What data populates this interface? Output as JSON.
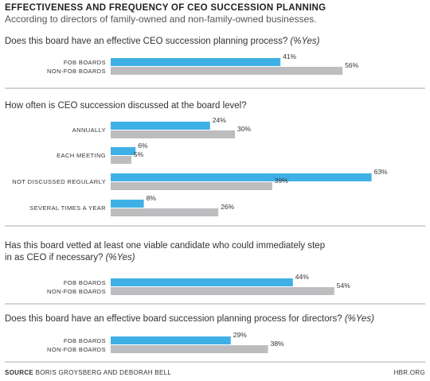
{
  "chart_data": {
    "type": "bar",
    "orientation": "horizontal",
    "title": "EFFECTIVENESS AND FREQUENCY OF CEO SUCCESSION PLANNING",
    "subtitle": "According to directors of family-owned and non-family-owned businesses.",
    "unit": "%",
    "xlim": [
      0,
      63
    ],
    "grid": false,
    "colors": {
      "fob": "#3fb0e5",
      "nonfob": "#bdbdbf"
    },
    "panels": [
      {
        "question": "Does this board have an effective CEO succession planning process?",
        "question_suffix": "(%Yes)",
        "rows": [
          {
            "label": "FOB BOARDS",
            "value": 41,
            "series": "fob"
          },
          {
            "label": "NON-FOB BOARDS",
            "value": 56,
            "series": "nonfob"
          }
        ]
      },
      {
        "question": "How often is CEO succession discussed at the board level?",
        "question_suffix": "",
        "groups": [
          {
            "label": "ANNUALLY",
            "fob": 24,
            "nonfob": 30
          },
          {
            "label": "EACH MEETING",
            "fob": 6,
            "nonfob": 5
          },
          {
            "label": "NOT DISCUSSED REGULARLY",
            "fob": 63,
            "nonfob": 39
          },
          {
            "label": "SEVERAL TIMES A YEAR",
            "fob": 8,
            "nonfob": 26
          }
        ]
      },
      {
        "question": "Has this board vetted at least one viable candidate who could immediately step",
        "question_line2": "in as CEO if necessary?",
        "question_suffix": "(%Yes)",
        "rows": [
          {
            "label": "FOB BOARDS",
            "value": 44,
            "series": "fob"
          },
          {
            "label": "NON-FOB BOARDS",
            "value": 54,
            "series": "nonfob"
          }
        ]
      },
      {
        "question": "Does this board have an effective board succession planning process for directors?",
        "question_suffix": "(%Yes)",
        "rows": [
          {
            "label": "FOB BOARDS",
            "value": 29,
            "series": "fob"
          },
          {
            "label": "NON-FOB BOARDS",
            "value": 38,
            "series": "nonfob"
          }
        ]
      }
    ]
  },
  "footer": {
    "source_label": "SOURCE",
    "source_text": "BORIS GROYSBERG AND DEBORAH BELL",
    "publisher": "HBR.ORG"
  }
}
